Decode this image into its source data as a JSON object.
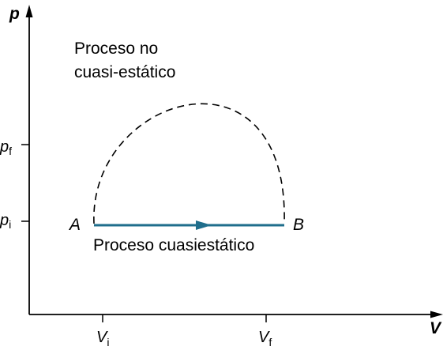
{
  "axes": {
    "y_label": "p",
    "x_label": "V"
  },
  "y_ticks": [
    {
      "main": "p",
      "sub": "f"
    },
    {
      "main": "p",
      "sub": "i"
    }
  ],
  "x_ticks": [
    {
      "main": "V",
      "sub": "i"
    },
    {
      "main": "V",
      "sub": "f"
    }
  ],
  "points": {
    "start": "A",
    "end": "B"
  },
  "curves": {
    "non_quasistatic": {
      "label_line1": "Proceso no",
      "label_line2": "cuasi-estático",
      "style": "dashed"
    },
    "quasistatic": {
      "label": "Proceso cuasiestático",
      "color": "#1f6e8c"
    }
  },
  "colors": {
    "axis": "#000000",
    "process_line": "#1f6e8c"
  }
}
